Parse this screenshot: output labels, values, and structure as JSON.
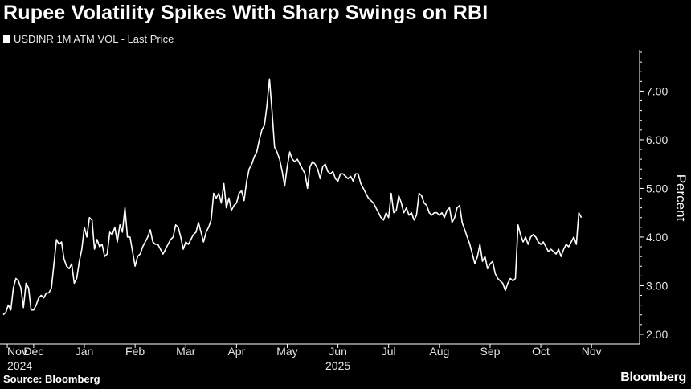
{
  "title": "Rupee Volatility Spikes With Sharp Swings on RBI",
  "source": "Source: Bloomberg",
  "brand": "Bloomberg",
  "colors": {
    "background": "#000000",
    "line": "#ffffff",
    "text": "#ffffff"
  },
  "chart_data": {
    "type": "line",
    "title": "Rupee Volatility Spikes With Sharp Swings on RBI",
    "ylabel": "Percent",
    "xlabel": "",
    "ylim": [
      1.9,
      7.85
    ],
    "yticks": [
      2.0,
      3.0,
      4.0,
      5.0,
      6.0,
      7.0
    ],
    "ytick_labels": [
      "2.00",
      "3.00",
      "4.00",
      "5.00",
      "6.00",
      "7.00"
    ],
    "y_axis_position": "right",
    "grid": false,
    "legend": "top-left",
    "xlim": [
      0,
      12.5
    ],
    "xticks": [
      {
        "label": "Nov",
        "x": 0.08,
        "sub": "2024"
      },
      {
        "label": "Dec",
        "x": 0.6
      },
      {
        "label": "Jan",
        "x": 1.6
      },
      {
        "label": "Feb",
        "x": 2.6
      },
      {
        "label": "Mar",
        "x": 3.6
      },
      {
        "label": "Apr",
        "x": 4.6
      },
      {
        "label": "May",
        "x": 5.6
      },
      {
        "label": "Jun",
        "x": 6.6,
        "sub": "2025"
      },
      {
        "label": "Jul",
        "x": 7.6
      },
      {
        "label": "Aug",
        "x": 8.6
      },
      {
        "label": "Sep",
        "x": 9.6
      },
      {
        "label": "Oct",
        "x": 10.6
      },
      {
        "label": "Nov",
        "x": 11.6
      }
    ],
    "series": [
      {
        "name": "USDINR 1M ATM VOL - Last Price",
        "points": [
          [
            0.0,
            2.4
          ],
          [
            0.05,
            2.45
          ],
          [
            0.1,
            2.6
          ],
          [
            0.15,
            2.5
          ],
          [
            0.2,
            2.95
          ],
          [
            0.25,
            3.15
          ],
          [
            0.3,
            3.1
          ],
          [
            0.35,
            2.95
          ],
          [
            0.4,
            2.55
          ],
          [
            0.45,
            3.05
          ],
          [
            0.5,
            2.95
          ],
          [
            0.55,
            2.5
          ],
          [
            0.6,
            2.5
          ],
          [
            0.65,
            2.6
          ],
          [
            0.7,
            2.75
          ],
          [
            0.75,
            2.8
          ],
          [
            0.8,
            2.75
          ],
          [
            0.85,
            2.85
          ],
          [
            0.9,
            2.85
          ],
          [
            0.95,
            2.95
          ],
          [
            1.05,
            3.95
          ],
          [
            1.1,
            3.85
          ],
          [
            1.15,
            3.9
          ],
          [
            1.2,
            3.55
          ],
          [
            1.25,
            3.4
          ],
          [
            1.3,
            3.35
          ],
          [
            1.35,
            3.45
          ],
          [
            1.4,
            3.05
          ],
          [
            1.45,
            3.15
          ],
          [
            1.5,
            3.5
          ],
          [
            1.55,
            3.75
          ],
          [
            1.6,
            4.2
          ],
          [
            1.65,
            4.0
          ],
          [
            1.7,
            4.4
          ],
          [
            1.75,
            4.35
          ],
          [
            1.8,
            3.75
          ],
          [
            1.85,
            3.95
          ],
          [
            1.9,
            3.8
          ],
          [
            1.95,
            3.85
          ],
          [
            2.0,
            3.6
          ],
          [
            2.05,
            3.65
          ],
          [
            2.1,
            4.1
          ],
          [
            2.15,
            4.05
          ],
          [
            2.2,
            4.2
          ],
          [
            2.25,
            3.9
          ],
          [
            2.3,
            4.25
          ],
          [
            2.35,
            4.1
          ],
          [
            2.4,
            4.6
          ],
          [
            2.45,
            4.0
          ],
          [
            2.5,
            4.0
          ],
          [
            2.55,
            3.7
          ],
          [
            2.6,
            3.4
          ],
          [
            2.65,
            3.6
          ],
          [
            2.7,
            3.65
          ],
          [
            2.75,
            3.8
          ],
          [
            2.8,
            3.9
          ],
          [
            2.85,
            4.0
          ],
          [
            2.9,
            4.15
          ],
          [
            2.95,
            3.9
          ],
          [
            3.0,
            3.85
          ],
          [
            3.05,
            3.85
          ],
          [
            3.1,
            3.75
          ],
          [
            3.15,
            3.65
          ],
          [
            3.2,
            3.75
          ],
          [
            3.25,
            3.85
          ],
          [
            3.3,
            3.95
          ],
          [
            3.35,
            4.0
          ],
          [
            3.4,
            4.25
          ],
          [
            3.45,
            4.2
          ],
          [
            3.5,
            4.0
          ],
          [
            3.55,
            3.75
          ],
          [
            3.6,
            3.9
          ],
          [
            3.65,
            3.85
          ],
          [
            3.7,
            3.95
          ],
          [
            3.75,
            4.05
          ],
          [
            3.8,
            4.1
          ],
          [
            3.85,
            4.3
          ],
          [
            3.9,
            4.1
          ],
          [
            3.95,
            3.9
          ],
          [
            4.0,
            4.1
          ],
          [
            4.05,
            4.2
          ],
          [
            4.1,
            4.35
          ],
          [
            4.15,
            4.9
          ],
          [
            4.2,
            4.8
          ],
          [
            4.25,
            4.9
          ],
          [
            4.3,
            4.7
          ],
          [
            4.35,
            5.1
          ],
          [
            4.4,
            4.6
          ],
          [
            4.45,
            4.8
          ],
          [
            4.5,
            4.55
          ],
          [
            4.55,
            4.65
          ],
          [
            4.6,
            4.7
          ],
          [
            4.65,
            4.9
          ],
          [
            4.7,
            4.95
          ],
          [
            4.75,
            4.75
          ],
          [
            4.8,
            5.15
          ],
          [
            4.85,
            5.4
          ],
          [
            4.9,
            5.5
          ],
          [
            4.95,
            5.65
          ],
          [
            5.0,
            5.75
          ],
          [
            5.05,
            6.0
          ],
          [
            5.1,
            6.2
          ],
          [
            5.15,
            6.3
          ],
          [
            5.2,
            6.7
          ],
          [
            5.25,
            7.25
          ],
          [
            5.3,
            6.6
          ],
          [
            5.35,
            5.85
          ],
          [
            5.4,
            5.75
          ],
          [
            5.45,
            5.6
          ],
          [
            5.5,
            5.35
          ],
          [
            5.55,
            5.05
          ],
          [
            5.6,
            5.45
          ],
          [
            5.65,
            5.75
          ],
          [
            5.7,
            5.6
          ],
          [
            5.75,
            5.55
          ],
          [
            5.8,
            5.6
          ],
          [
            5.85,
            5.5
          ],
          [
            5.9,
            5.4
          ],
          [
            5.95,
            5.3
          ],
          [
            6.0,
            5.0
          ],
          [
            6.05,
            5.45
          ],
          [
            6.1,
            5.55
          ],
          [
            6.15,
            5.5
          ],
          [
            6.2,
            5.4
          ],
          [
            6.25,
            5.2
          ],
          [
            6.3,
            5.45
          ],
          [
            6.35,
            5.5
          ],
          [
            6.4,
            5.35
          ],
          [
            6.45,
            5.3
          ],
          [
            6.5,
            5.35
          ],
          [
            6.55,
            5.2
          ],
          [
            6.6,
            5.15
          ],
          [
            6.65,
            5.3
          ],
          [
            6.7,
            5.3
          ],
          [
            6.75,
            5.25
          ],
          [
            6.8,
            5.2
          ],
          [
            6.85,
            5.25
          ],
          [
            6.9,
            5.15
          ],
          [
            6.95,
            5.3
          ],
          [
            7.0,
            5.3
          ],
          [
            7.05,
            5.1
          ],
          [
            7.1,
            5.0
          ],
          [
            7.15,
            4.9
          ],
          [
            7.2,
            4.8
          ],
          [
            7.25,
            4.75
          ],
          [
            7.3,
            4.7
          ],
          [
            7.35,
            4.6
          ],
          [
            7.4,
            4.5
          ],
          [
            7.45,
            4.4
          ],
          [
            7.5,
            4.35
          ],
          [
            7.55,
            4.5
          ],
          [
            7.6,
            4.4
          ],
          [
            7.65,
            4.9
          ],
          [
            7.7,
            4.5
          ],
          [
            7.75,
            4.55
          ],
          [
            7.8,
            4.85
          ],
          [
            7.85,
            4.7
          ],
          [
            7.9,
            4.5
          ],
          [
            7.95,
            4.6
          ],
          [
            8.0,
            4.45
          ],
          [
            8.05,
            4.5
          ],
          [
            8.1,
            4.35
          ],
          [
            8.15,
            4.45
          ],
          [
            8.2,
            4.9
          ],
          [
            8.25,
            4.85
          ],
          [
            8.3,
            4.7
          ],
          [
            8.35,
            4.65
          ],
          [
            8.4,
            4.5
          ],
          [
            8.45,
            4.45
          ],
          [
            8.5,
            4.5
          ],
          [
            8.55,
            4.5
          ],
          [
            8.6,
            4.45
          ],
          [
            8.65,
            4.5
          ],
          [
            8.7,
            4.4
          ],
          [
            8.75,
            4.55
          ],
          [
            8.8,
            4.6
          ],
          [
            8.85,
            4.3
          ],
          [
            8.9,
            4.4
          ],
          [
            8.95,
            4.6
          ],
          [
            9.0,
            4.65
          ],
          [
            9.05,
            4.3
          ],
          [
            9.1,
            4.15
          ],
          [
            9.15,
            4.0
          ],
          [
            9.2,
            3.85
          ],
          [
            9.25,
            3.65
          ],
          [
            9.3,
            3.45
          ],
          [
            9.35,
            3.6
          ],
          [
            9.4,
            3.85
          ],
          [
            9.45,
            3.5
          ],
          [
            9.5,
            3.6
          ],
          [
            9.55,
            3.35
          ],
          [
            9.6,
            3.45
          ],
          [
            9.65,
            3.5
          ],
          [
            9.7,
            3.25
          ],
          [
            9.75,
            3.15
          ],
          [
            9.8,
            3.1
          ],
          [
            9.85,
            3.05
          ],
          [
            9.9,
            2.9
          ],
          [
            9.95,
            3.05
          ],
          [
            10.0,
            3.15
          ],
          [
            10.05,
            3.1
          ],
          [
            10.1,
            3.15
          ],
          [
            10.15,
            4.25
          ],
          [
            10.2,
            4.05
          ],
          [
            10.25,
            3.9
          ],
          [
            10.3,
            4.0
          ],
          [
            10.35,
            3.85
          ],
          [
            10.4,
            4.0
          ],
          [
            10.45,
            4.05
          ],
          [
            10.5,
            4.0
          ],
          [
            10.55,
            3.9
          ],
          [
            10.6,
            3.85
          ],
          [
            10.65,
            3.9
          ],
          [
            10.7,
            3.8
          ],
          [
            10.75,
            3.7
          ],
          [
            10.8,
            3.75
          ],
          [
            10.85,
            3.7
          ],
          [
            10.9,
            3.65
          ],
          [
            10.95,
            3.75
          ],
          [
            11.0,
            3.6
          ],
          [
            11.05,
            3.75
          ],
          [
            11.1,
            3.85
          ],
          [
            11.15,
            3.8
          ],
          [
            11.2,
            3.9
          ],
          [
            11.25,
            4.0
          ],
          [
            11.3,
            3.85
          ],
          [
            11.35,
            4.5
          ],
          [
            11.4,
            4.4
          ]
        ]
      }
    ]
  }
}
